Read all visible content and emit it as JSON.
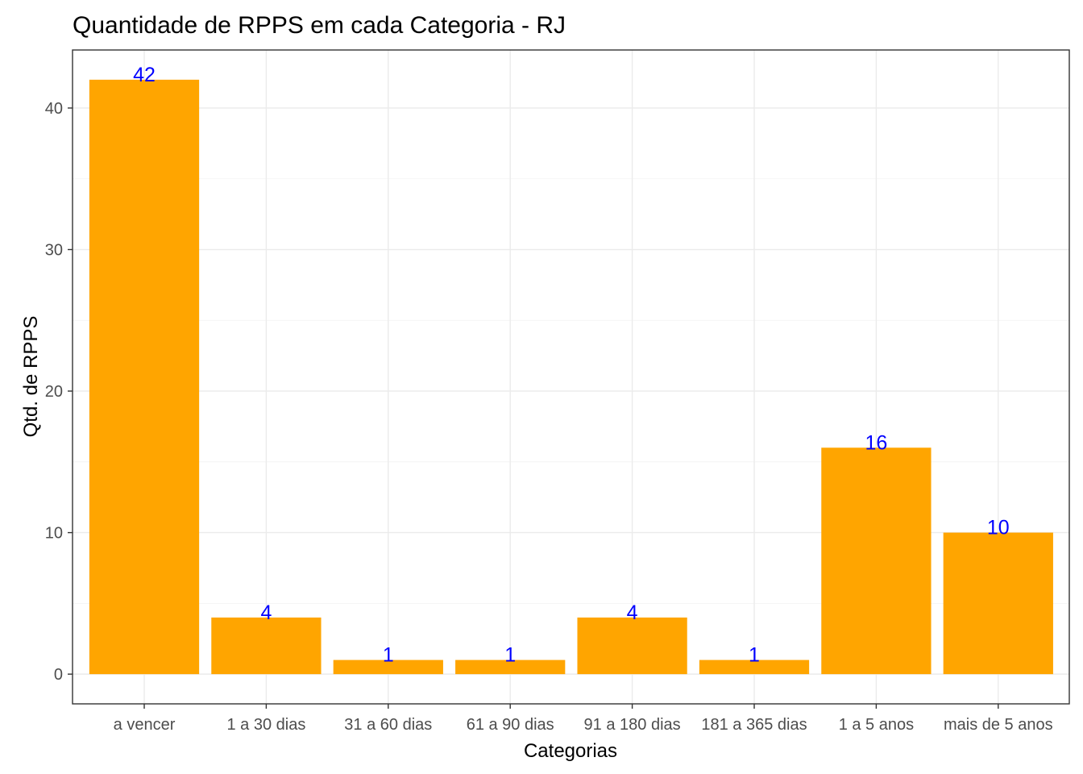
{
  "colors": {
    "bar": "#FFA500",
    "data_label": "#0000FF",
    "panel_border": "#333333",
    "grid": "#EBEBEB"
  },
  "chart_data": {
    "type": "bar",
    "title": "Quantidade de RPPS em cada Categoria - RJ",
    "xlabel": "Categorias",
    "ylabel": "Qtd. de RPPS",
    "categories": [
      "a vencer",
      "1 a 30 dias",
      "31 a 60 dias",
      "61 a 90 dias",
      "91 a 180 dias",
      "181 a 365 dias",
      "1 a 5 anos",
      "mais de 5 anos"
    ],
    "values": [
      42,
      4,
      1,
      1,
      4,
      1,
      16,
      10
    ],
    "data_labels": [
      "42",
      "4",
      "1",
      "1",
      "4",
      "1",
      "16",
      "10"
    ],
    "y_ticks": [
      0,
      10,
      20,
      30,
      40
    ],
    "y_tick_labels": [
      "0",
      "10",
      "20",
      "30",
      "40"
    ],
    "ylim": [
      -2.1,
      44.1
    ],
    "grid": true,
    "legend": "none"
  }
}
